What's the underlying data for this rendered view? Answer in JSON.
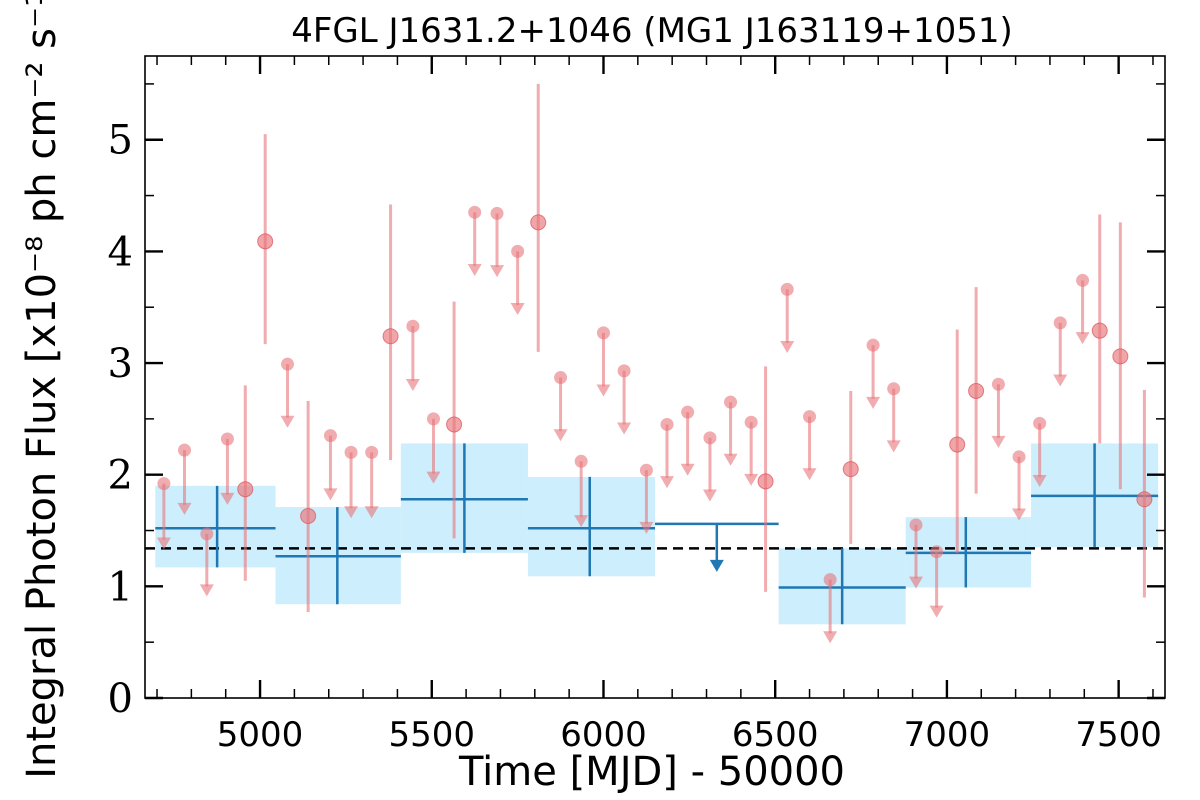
{
  "chart_data": {
    "type": "scatter",
    "title": "4FGL J1631.2+1046 (MG1 J163119+1051)",
    "xlabel": "Time [MJD] - 50000",
    "ylabel": "Integral Photon Flux [x10⁻⁸ ph cm⁻² s⁻¹]",
    "xlim": [
      4665,
      7635
    ],
    "ylim": [
      0,
      5.75
    ],
    "xticks": [
      5000,
      5500,
      6000,
      6500,
      7000,
      7500
    ],
    "yticks": [
      0,
      1,
      2,
      3,
      4,
      5
    ],
    "mean_flux": 1.34,
    "colors": {
      "detection": "#e8747a",
      "upper_limit": "#e8747a",
      "bin_band": "#cdeefc",
      "bin_line": "#1f77b4",
      "mean_line": "#000000"
    },
    "series": [
      {
        "kind": "short-bin detections",
        "points": [
          {
            "x": 4957,
            "y": 1.87,
            "ylo": 1.05,
            "yhi": 2.8
          },
          {
            "x": 5015,
            "y": 4.09,
            "ylo": 3.17,
            "yhi": 5.05
          },
          {
            "x": 5140,
            "y": 1.63,
            "ylo": 0.77,
            "yhi": 2.66
          },
          {
            "x": 5380,
            "y": 3.24,
            "ylo": 2.13,
            "yhi": 4.42
          },
          {
            "x": 5565,
            "y": 2.45,
            "ylo": 1.43,
            "yhi": 3.55
          },
          {
            "x": 5810,
            "y": 4.26,
            "ylo": 3.1,
            "yhi": 5.5
          },
          {
            "x": 6472,
            "y": 1.94,
            "ylo": 0.95,
            "yhi": 2.97
          },
          {
            "x": 6720,
            "y": 2.05,
            "ylo": 1.38,
            "yhi": 2.75
          },
          {
            "x": 7030,
            "y": 2.27,
            "ylo": 1.3,
            "yhi": 3.3
          },
          {
            "x": 7085,
            "y": 2.75,
            "ylo": 1.83,
            "yhi": 3.68
          },
          {
            "x": 7445,
            "y": 3.29,
            "ylo": 2.28,
            "yhi": 4.33
          },
          {
            "x": 7505,
            "y": 3.06,
            "ylo": 1.87,
            "yhi": 4.26
          },
          {
            "x": 7575,
            "y": 1.78,
            "ylo": 0.9,
            "yhi": 2.76
          }
        ]
      },
      {
        "kind": "short-bin upper limits",
        "points": [
          {
            "x": 4720,
            "y": 1.92,
            "to": 1.33
          },
          {
            "x": 4780,
            "y": 2.22,
            "to": 1.64
          },
          {
            "x": 4845,
            "y": 1.47,
            "to": 0.91
          },
          {
            "x": 4905,
            "y": 2.32,
            "to": 1.73
          },
          {
            "x": 5080,
            "y": 2.99,
            "to": 2.42
          },
          {
            "x": 5205,
            "y": 2.35,
            "to": 1.77
          },
          {
            "x": 5265,
            "y": 2.2,
            "to": 1.61
          },
          {
            "x": 5325,
            "y": 2.2,
            "to": 1.61
          },
          {
            "x": 5445,
            "y": 3.33,
            "to": 2.75
          },
          {
            "x": 5505,
            "y": 2.5,
            "to": 1.92
          },
          {
            "x": 5625,
            "y": 4.35,
            "to": 3.78
          },
          {
            "x": 5690,
            "y": 4.34,
            "to": 3.77
          },
          {
            "x": 5750,
            "y": 4.0,
            "to": 3.43
          },
          {
            "x": 5875,
            "y": 2.87,
            "to": 2.3
          },
          {
            "x": 5935,
            "y": 2.12,
            "to": 1.53
          },
          {
            "x": 6000,
            "y": 3.27,
            "to": 2.7
          },
          {
            "x": 6060,
            "y": 2.93,
            "to": 2.36
          },
          {
            "x": 6125,
            "y": 2.04,
            "to": 1.47
          },
          {
            "x": 6185,
            "y": 2.45,
            "to": 1.88
          },
          {
            "x": 6245,
            "y": 2.56,
            "to": 1.99
          },
          {
            "x": 6310,
            "y": 2.33,
            "to": 1.76
          },
          {
            "x": 6370,
            "y": 2.65,
            "to": 2.08
          },
          {
            "x": 6430,
            "y": 2.47,
            "to": 1.9
          },
          {
            "x": 6535,
            "y": 3.66,
            "to": 3.09
          },
          {
            "x": 6600,
            "y": 2.52,
            "to": 1.95
          },
          {
            "x": 6660,
            "y": 1.06,
            "to": 0.49
          },
          {
            "x": 6785,
            "y": 3.16,
            "to": 2.59
          },
          {
            "x": 6845,
            "y": 2.77,
            "to": 2.2
          },
          {
            "x": 6910,
            "y": 1.55,
            "to": 0.98
          },
          {
            "x": 6970,
            "y": 1.31,
            "to": 0.72
          },
          {
            "x": 7150,
            "y": 2.81,
            "to": 2.24
          },
          {
            "x": 7210,
            "y": 2.16,
            "to": 1.59
          },
          {
            "x": 7270,
            "y": 2.46,
            "to": 1.89
          },
          {
            "x": 7330,
            "y": 3.36,
            "to": 2.79
          },
          {
            "x": 7395,
            "y": 3.74,
            "to": 3.17
          }
        ]
      },
      {
        "kind": "long-bin detections",
        "bins": [
          {
            "x0": 4695,
            "x1": 5045,
            "y": 1.52,
            "ylo": 1.17,
            "yhi": 1.9,
            "xc": 4875
          },
          {
            "x0": 5045,
            "x1": 5410,
            "y": 1.27,
            "ylo": 0.84,
            "yhi": 1.71,
            "xc": 5225
          },
          {
            "x0": 5410,
            "x1": 5780,
            "y": 1.78,
            "ylo": 1.3,
            "yhi": 2.28,
            "xc": 5595
          },
          {
            "x0": 5780,
            "x1": 6150,
            "y": 1.52,
            "ylo": 1.09,
            "yhi": 1.98,
            "xc": 5960
          },
          {
            "x0": 6510,
            "x1": 6880,
            "y": 0.99,
            "ylo": 0.66,
            "yhi": 1.34,
            "xc": 6695
          },
          {
            "x0": 6880,
            "x1": 7245,
            "y": 1.3,
            "ylo": 0.99,
            "yhi": 1.62,
            "xc": 7055
          },
          {
            "x0": 7245,
            "x1": 7615,
            "y": 1.81,
            "ylo": 1.35,
            "yhi": 2.28,
            "xc": 7430
          }
        ]
      },
      {
        "kind": "long-bin upper limits",
        "bins": [
          {
            "x0": 6150,
            "x1": 6510,
            "y": 1.56,
            "to": 1.13,
            "xc": 6330
          }
        ]
      }
    ]
  }
}
